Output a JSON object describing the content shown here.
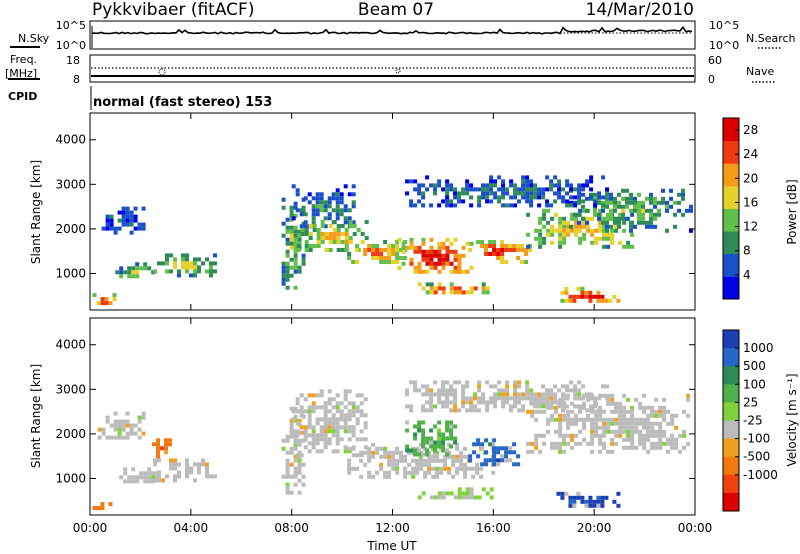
{
  "header": {
    "station": "Pykkvibaer (fitACF)",
    "beam": "Beam 07",
    "date": "14/Mar/2010"
  },
  "noise_panel": {
    "left_label": "N.Sky",
    "right_label": "N.Search",
    "tick_top": "10^5",
    "tick_bottom": "10^0"
  },
  "freq_panel": {
    "left_label_1": "Freq.",
    "left_label_2": "[MHz]",
    "right_label": "Nave",
    "left_tick_top": "18",
    "left_tick_bottom": "8",
    "right_tick_top": "60",
    "right_tick_bottom": "0"
  },
  "cpid": {
    "label": "CPID",
    "text": "normal (fast stereo) 153"
  },
  "chart_data": [
    {
      "type": "heatmap",
      "quantity": "power",
      "ylabel": "Slant Range [km]",
      "xlabel": "",
      "x_ticks": [
        "00:00",
        "04:00",
        "08:00",
        "12:00",
        "16:00",
        "20:00",
        "00:00"
      ],
      "y_ticks": [
        1000,
        2000,
        3000,
        4000
      ],
      "xlim_hours": [
        0,
        24
      ],
      "ylim_km": [
        180,
        4600
      ],
      "colorbar": {
        "label": "Power [dB]",
        "ticks": [
          4,
          8,
          12,
          16,
          20,
          24,
          28
        ],
        "range": [
          0,
          30
        ],
        "colors": [
          "#0000e6",
          "#1a4fcc",
          "#2e8b57",
          "#5fbf4a",
          "#e6d02a",
          "#f59b1a",
          "#ee3a10",
          "#dd0000"
        ]
      },
      "regions": [
        {
          "t0": 0.1,
          "t1": 1.0,
          "r0": 300,
          "r1": 560,
          "level": 0.85
        },
        {
          "t0": 0.3,
          "t1": 2.2,
          "r0": 1900,
          "r1": 2500,
          "level": 0.2
        },
        {
          "t0": 1.0,
          "t1": 2.6,
          "r0": 900,
          "r1": 1250,
          "level": 0.45
        },
        {
          "t0": 2.5,
          "t1": 5.0,
          "r0": 1000,
          "r1": 1450,
          "level": 0.5
        },
        {
          "t0": 7.6,
          "t1": 8.4,
          "r0": 700,
          "r1": 2700,
          "level": 0.45
        },
        {
          "t0": 8.0,
          "t1": 10.5,
          "r0": 2100,
          "r1": 3000,
          "level": 0.3
        },
        {
          "t0": 8.2,
          "t1": 11.0,
          "r0": 1500,
          "r1": 2200,
          "level": 0.6
        },
        {
          "t0": 10.2,
          "t1": 12.5,
          "r0": 1250,
          "r1": 1750,
          "level": 0.72
        },
        {
          "t0": 12.2,
          "t1": 15.2,
          "r0": 1000,
          "r1": 1800,
          "level": 0.95
        },
        {
          "t0": 15.0,
          "t1": 17.5,
          "r0": 1300,
          "r1": 1750,
          "level": 0.9
        },
        {
          "t0": 17.3,
          "t1": 21.5,
          "r0": 1600,
          "r1": 2450,
          "level": 0.6
        },
        {
          "t0": 19.0,
          "t1": 23.8,
          "r0": 2000,
          "r1": 2900,
          "level": 0.4
        },
        {
          "t0": 12.5,
          "t1": 20.5,
          "r0": 2500,
          "r1": 3200,
          "level": 0.25
        },
        {
          "t0": 13.0,
          "t1": 16.0,
          "r0": 550,
          "r1": 800,
          "level": 0.8
        },
        {
          "t0": 18.5,
          "t1": 21.0,
          "r0": 350,
          "r1": 700,
          "level": 0.92
        }
      ]
    },
    {
      "type": "heatmap",
      "quantity": "velocity",
      "ylabel": "Slant Range [km]",
      "xlabel": "Time UT",
      "x_ticks": [
        "00:00",
        "04:00",
        "08:00",
        "12:00",
        "16:00",
        "20:00",
        "00:00"
      ],
      "y_ticks": [
        1000,
        2000,
        3000,
        4000
      ],
      "xlim_hours": [
        0,
        24
      ],
      "ylim_km": [
        180,
        4600
      ],
      "colorbar": {
        "label": "Velocity [m s⁻¹]",
        "ticks": [
          1000,
          500,
          100,
          25,
          -25,
          -100,
          -500,
          -1000
        ],
        "colors": [
          "#1e3fb4",
          "#2566c8",
          "#2e8b57",
          "#4fb04a",
          "#7fd23a",
          "#bbbbbb",
          "#f0a020",
          "#f07a10",
          "#ee4010",
          "#dd0000"
        ]
      },
      "regions": [
        {
          "t0": 0.1,
          "t1": 1.0,
          "r0": 300,
          "r1": 560,
          "cat": 7
        },
        {
          "t0": 0.3,
          "t1": 2.2,
          "r0": 1900,
          "r1": 2500,
          "cat": 5
        },
        {
          "t0": 1.0,
          "t1": 2.6,
          "r0": 900,
          "r1": 1250,
          "cat": 5
        },
        {
          "t0": 2.5,
          "t1": 5.0,
          "r0": 1000,
          "r1": 1450,
          "cat": 5
        },
        {
          "t0": 7.6,
          "t1": 8.4,
          "r0": 700,
          "r1": 2700,
          "cat": 5
        },
        {
          "t0": 8.0,
          "t1": 11.0,
          "r0": 1500,
          "r1": 3000,
          "cat": 5
        },
        {
          "t0": 10.2,
          "t1": 16.0,
          "r0": 1000,
          "r1": 1800,
          "cat": 5
        },
        {
          "t0": 12.5,
          "t1": 14.5,
          "r0": 1500,
          "r1": 2300,
          "cat": 3
        },
        {
          "t0": 15.0,
          "t1": 17.0,
          "r0": 1300,
          "r1": 1900,
          "cat": 1
        },
        {
          "t0": 17.3,
          "t1": 23.8,
          "r0": 1600,
          "r1": 2900,
          "cat": 5
        },
        {
          "t0": 12.5,
          "t1": 20.5,
          "r0": 2500,
          "r1": 3200,
          "cat": 5
        },
        {
          "t0": 13.0,
          "t1": 16.0,
          "r0": 550,
          "r1": 800,
          "cat": 4
        },
        {
          "t0": 18.5,
          "t1": 21.0,
          "r0": 350,
          "r1": 700,
          "cat": 0
        },
        {
          "t0": 2.3,
          "t1": 3.2,
          "r0": 1500,
          "r1": 1900,
          "cat": 7
        }
      ]
    }
  ]
}
